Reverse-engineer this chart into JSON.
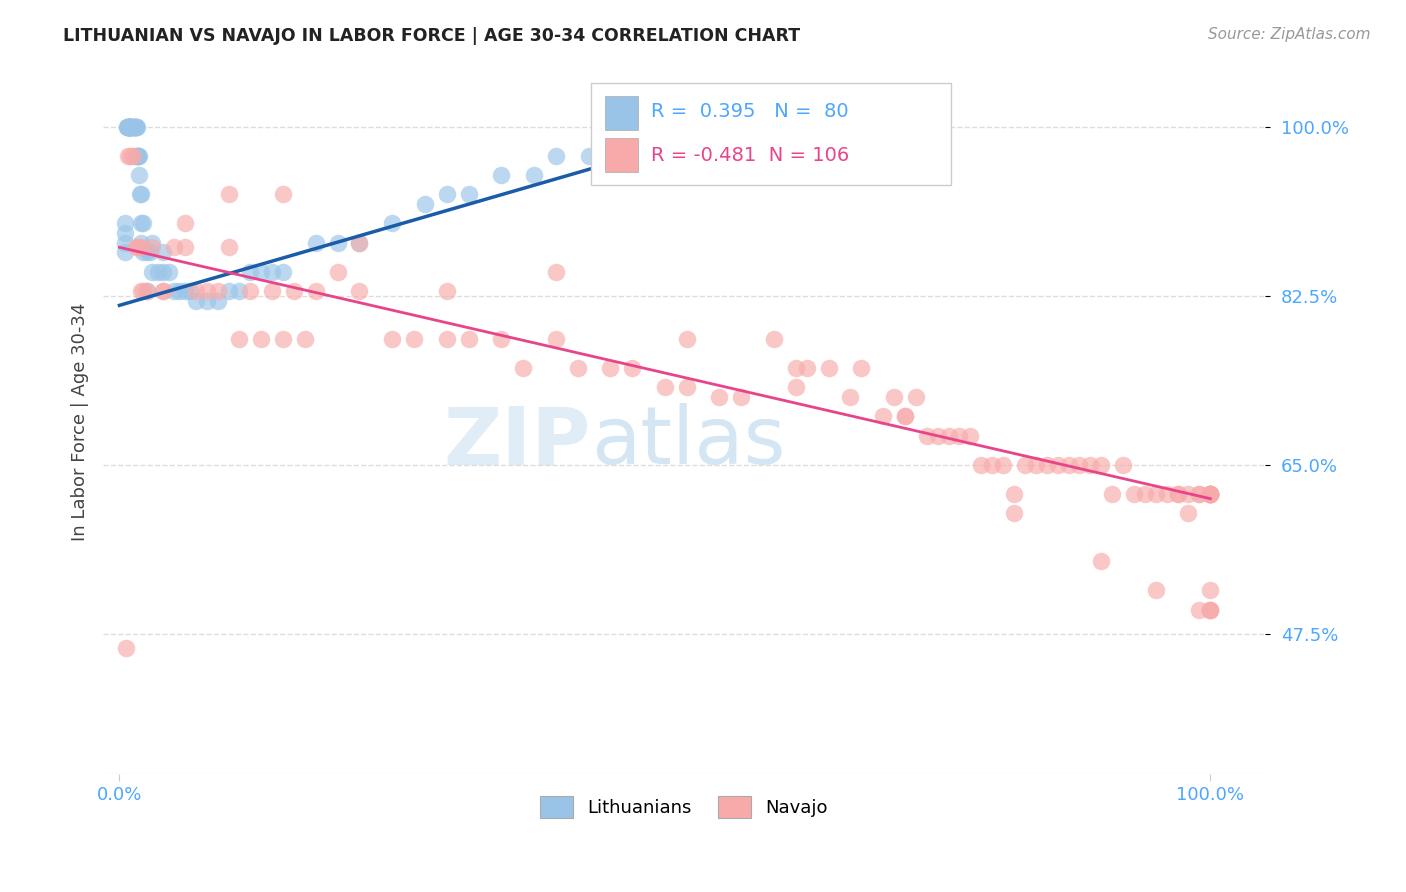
{
  "title": "LITHUANIAN VS NAVAJO IN LABOR FORCE | AGE 30-34 CORRELATION CHART",
  "source": "Source: ZipAtlas.com",
  "ylabel": "In Labor Force | Age 30-34",
  "legend_labels": [
    "Lithuanians",
    "Navajo"
  ],
  "blue_color": "#99c4e8",
  "pink_color": "#f8aaaa",
  "blue_line_color": "#1a5ca8",
  "pink_line_color": "#e8448a",
  "tick_color": "#4da6ff",
  "R_blue": 0.395,
  "N_blue": 80,
  "R_pink": -0.481,
  "N_pink": 106,
  "ytick_vals": [
    0.475,
    0.65,
    0.825,
    1.0
  ],
  "ytick_labels": [
    "47.5%",
    "65.0%",
    "82.5%",
    "100.0%"
  ],
  "xlim": [
    -0.015,
    1.05
  ],
  "ylim": [
    0.33,
    1.06
  ],
  "watermark_zip": "ZIP",
  "watermark_atlas": "atlas",
  "background_color": "#ffffff",
  "grid_color": "#dddddd",
  "blue_x": [
    0.005,
    0.005,
    0.005,
    0.005,
    0.007,
    0.007,
    0.008,
    0.008,
    0.008,
    0.009,
    0.009,
    0.009,
    0.009,
    0.01,
    0.01,
    0.01,
    0.01,
    0.01,
    0.01,
    0.01,
    0.01,
    0.012,
    0.012,
    0.013,
    0.013,
    0.014,
    0.014,
    0.015,
    0.015,
    0.015,
    0.016,
    0.016,
    0.017,
    0.017,
    0.018,
    0.018,
    0.019,
    0.02,
    0.02,
    0.02,
    0.022,
    0.022,
    0.025,
    0.025,
    0.028,
    0.03,
    0.03,
    0.035,
    0.04,
    0.04,
    0.045,
    0.05,
    0.055,
    0.06,
    0.065,
    0.07,
    0.08,
    0.09,
    0.1,
    0.11,
    0.12,
    0.13,
    0.14,
    0.15,
    0.18,
    0.2,
    0.22,
    0.25,
    0.28,
    0.3,
    0.32,
    0.35,
    0.38,
    0.4,
    0.43,
    0.46,
    0.49,
    0.5,
    0.51,
    0.52
  ],
  "blue_y": [
    0.87,
    0.88,
    0.89,
    0.9,
    1.0,
    1.0,
    1.0,
    1.0,
    1.0,
    1.0,
    1.0,
    1.0,
    1.0,
    1.0,
    1.0,
    1.0,
    1.0,
    1.0,
    1.0,
    1.0,
    1.0,
    1.0,
    1.0,
    1.0,
    1.0,
    1.0,
    1.0,
    1.0,
    1.0,
    0.97,
    1.0,
    0.97,
    0.97,
    0.97,
    0.97,
    0.95,
    0.93,
    0.93,
    0.9,
    0.88,
    0.9,
    0.87,
    0.87,
    0.83,
    0.87,
    0.88,
    0.85,
    0.85,
    0.87,
    0.85,
    0.85,
    0.83,
    0.83,
    0.83,
    0.83,
    0.82,
    0.82,
    0.82,
    0.83,
    0.83,
    0.85,
    0.85,
    0.85,
    0.85,
    0.88,
    0.88,
    0.88,
    0.9,
    0.92,
    0.93,
    0.93,
    0.95,
    0.95,
    0.97,
    0.97,
    0.98,
    0.98,
    0.99,
    0.99,
    1.0
  ],
  "pink_x": [
    0.006,
    0.008,
    0.01,
    0.012,
    0.015,
    0.017,
    0.02,
    0.022,
    0.025,
    0.03,
    0.04,
    0.05,
    0.06,
    0.07,
    0.08,
    0.09,
    0.1,
    0.11,
    0.12,
    0.13,
    0.14,
    0.15,
    0.16,
    0.17,
    0.18,
    0.2,
    0.22,
    0.25,
    0.27,
    0.3,
    0.32,
    0.35,
    0.37,
    0.4,
    0.42,
    0.45,
    0.47,
    0.5,
    0.52,
    0.55,
    0.57,
    0.6,
    0.62,
    0.63,
    0.65,
    0.67,
    0.68,
    0.7,
    0.71,
    0.72,
    0.73,
    0.74,
    0.75,
    0.76,
    0.77,
    0.78,
    0.79,
    0.8,
    0.81,
    0.82,
    0.83,
    0.84,
    0.85,
    0.86,
    0.87,
    0.88,
    0.89,
    0.9,
    0.91,
    0.92,
    0.93,
    0.94,
    0.95,
    0.96,
    0.97,
    0.97,
    0.98,
    0.98,
    0.99,
    0.99,
    1.0,
    1.0,
    1.0,
    1.0,
    1.0,
    1.0,
    1.0,
    0.02,
    0.04,
    0.06,
    0.1,
    0.15,
    0.22,
    0.3,
    0.4,
    0.52,
    0.62,
    0.72,
    0.82,
    0.9,
    0.95,
    0.99,
    1.0,
    1.0,
    1.0,
    1.0
  ],
  "pink_y": [
    0.46,
    0.97,
    0.97,
    0.97,
    0.875,
    0.875,
    0.83,
    0.83,
    0.83,
    0.875,
    0.83,
    0.875,
    0.875,
    0.83,
    0.83,
    0.83,
    0.875,
    0.78,
    0.83,
    0.78,
    0.83,
    0.78,
    0.83,
    0.78,
    0.83,
    0.85,
    0.83,
    0.78,
    0.78,
    0.78,
    0.78,
    0.78,
    0.75,
    0.78,
    0.75,
    0.75,
    0.75,
    0.73,
    0.73,
    0.72,
    0.72,
    0.78,
    0.75,
    0.75,
    0.75,
    0.72,
    0.75,
    0.7,
    0.72,
    0.7,
    0.72,
    0.68,
    0.68,
    0.68,
    0.68,
    0.68,
    0.65,
    0.65,
    0.65,
    0.62,
    0.65,
    0.65,
    0.65,
    0.65,
    0.65,
    0.65,
    0.65,
    0.65,
    0.62,
    0.65,
    0.62,
    0.62,
    0.62,
    0.62,
    0.62,
    0.62,
    0.62,
    0.6,
    0.62,
    0.62,
    0.62,
    0.62,
    0.62,
    0.62,
    0.62,
    0.62,
    0.62,
    0.875,
    0.83,
    0.9,
    0.93,
    0.93,
    0.88,
    0.83,
    0.85,
    0.78,
    0.73,
    0.7,
    0.6,
    0.55,
    0.52,
    0.5,
    0.5,
    0.52,
    0.5,
    0.5
  ]
}
